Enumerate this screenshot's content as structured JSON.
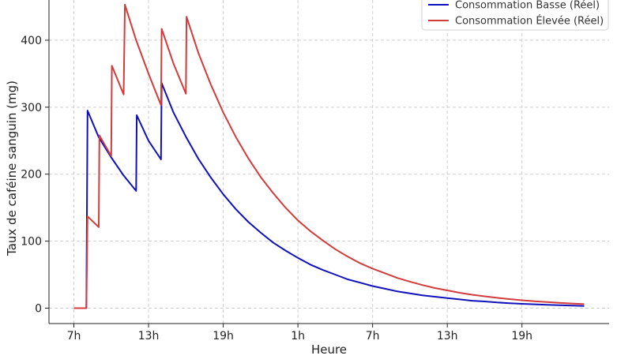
{
  "chart_data": {
    "type": "line",
    "title": "",
    "xlabel": "Heure",
    "ylabel": "Taux de caféine sanguin (mg)",
    "x_tick_labels": [
      "7h",
      "13h",
      "19h",
      "1h",
      "7h",
      "13h",
      "19h"
    ],
    "x_tick_hours": [
      0,
      6,
      12,
      18,
      24,
      30,
      36
    ],
    "y_ticks": [
      0,
      100,
      200,
      300,
      400
    ],
    "xlim": [
      -2,
      43
    ],
    "ylim": [
      -23,
      460
    ],
    "grid": true,
    "legend_position": "top-right",
    "x_unit": "hours since 7h",
    "series": [
      {
        "name": "Consommation Basse (Réel)",
        "color": "#1111bb",
        "points": [
          [
            0,
            0
          ],
          [
            1,
            0
          ],
          [
            1.1,
            295
          ],
          [
            2,
            255
          ],
          [
            3,
            225
          ],
          [
            4,
            198
          ],
          [
            5,
            175
          ],
          [
            5.05,
            288
          ],
          [
            6,
            250
          ],
          [
            7,
            222
          ],
          [
            7.05,
            336
          ],
          [
            8,
            292
          ],
          [
            9,
            256
          ],
          [
            10,
            223
          ],
          [
            11,
            195
          ],
          [
            12,
            170
          ],
          [
            13,
            148
          ],
          [
            14,
            129
          ],
          [
            15,
            113
          ],
          [
            16,
            98
          ],
          [
            17,
            86
          ],
          [
            18,
            75
          ],
          [
            19,
            65
          ],
          [
            20,
            57
          ],
          [
            21,
            50
          ],
          [
            22,
            43
          ],
          [
            23,
            38
          ],
          [
            24,
            33
          ],
          [
            25,
            29
          ],
          [
            26,
            25
          ],
          [
            27,
            22
          ],
          [
            28,
            19
          ],
          [
            29,
            17
          ],
          [
            30,
            15
          ],
          [
            31,
            13
          ],
          [
            32,
            11
          ],
          [
            33,
            10
          ],
          [
            34,
            8.5
          ],
          [
            35,
            7.4
          ],
          [
            36,
            6.5
          ],
          [
            37,
            5.7
          ],
          [
            38,
            5
          ],
          [
            39,
            4.4
          ],
          [
            40,
            3.8
          ],
          [
            41,
            3.3
          ]
        ]
      },
      {
        "name": "Consommation Élevée (Réel)",
        "color": "#d23c3c",
        "points": [
          [
            0,
            0
          ],
          [
            1,
            0
          ],
          [
            1.1,
            137
          ],
          [
            2,
            121
          ],
          [
            2.05,
            258
          ],
          [
            3,
            227
          ],
          [
            3.05,
            362
          ],
          [
            4,
            319
          ],
          [
            4.1,
            453
          ],
          [
            5,
            400
          ],
          [
            6,
            350
          ],
          [
            7,
            303
          ],
          [
            7.05,
            417
          ],
          [
            8,
            365
          ],
          [
            9,
            320
          ],
          [
            9.05,
            435
          ],
          [
            10,
            381
          ],
          [
            11,
            334
          ],
          [
            12,
            292
          ],
          [
            13,
            256
          ],
          [
            14,
            224
          ],
          [
            15,
            196
          ],
          [
            16,
            172
          ],
          [
            17,
            150
          ],
          [
            18,
            131
          ],
          [
            19,
            115
          ],
          [
            20,
            101
          ],
          [
            21,
            88
          ],
          [
            22,
            77
          ],
          [
            23,
            67
          ],
          [
            24,
            59
          ],
          [
            25,
            52
          ],
          [
            26,
            45
          ],
          [
            27,
            39.5
          ],
          [
            28,
            34.5
          ],
          [
            29,
            30
          ],
          [
            30,
            26.5
          ],
          [
            31,
            23
          ],
          [
            32,
            20
          ],
          [
            33,
            17.6
          ],
          [
            34,
            15.4
          ],
          [
            35,
            13.5
          ],
          [
            36,
            11.8
          ],
          [
            37,
            10.3
          ],
          [
            38,
            9
          ],
          [
            39,
            7.9
          ],
          [
            40,
            6.9
          ],
          [
            41,
            6
          ]
        ]
      }
    ]
  }
}
